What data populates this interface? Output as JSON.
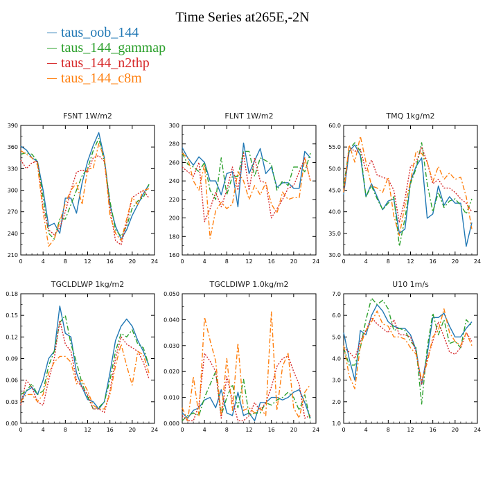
{
  "title": "Time Series at265E,-2N",
  "legend": [
    {
      "name": "taus_oob_144",
      "color": "#1f77b4",
      "dash": ""
    },
    {
      "name": "taus_144_gammap",
      "color": "#2ca02c",
      "dash": "7,3,2,3"
    },
    {
      "name": "taus_144_n2thp",
      "color": "#d62728",
      "dash": "2,2"
    },
    {
      "name": "taus_144_c8m",
      "color": "#ff7f0e",
      "dash": "7,3,2,3"
    }
  ],
  "chart_data": [
    {
      "type": "line",
      "title": "FSNT   1W/m2",
      "xlim": [
        0,
        24
      ],
      "xticks": [
        0,
        4,
        8,
        12,
        16,
        20,
        24
      ],
      "ylim": [
        210,
        390
      ],
      "yticks": [
        "210",
        "240",
        "270",
        "300",
        "330",
        "360",
        "390"
      ],
      "x": [
        0,
        1,
        2,
        3,
        4,
        5,
        6,
        7,
        8,
        9,
        10,
        11,
        12,
        13,
        14,
        15,
        16,
        17,
        18,
        19,
        20,
        21,
        22,
        23
      ],
      "series": [
        {
          "name": "taus_oob_144",
          "values": [
            361,
            356,
            345,
            340,
            300,
            250,
            254,
            240,
            289,
            289,
            268,
            310,
            340,
            362,
            380,
            345,
            280,
            250,
            232,
            245,
            265,
            280,
            295,
            308
          ]
        },
        {
          "name": "taus_144_gammap",
          "values": [
            350,
            352,
            350,
            340,
            290,
            240,
            232,
            260,
            260,
            280,
            300,
            320,
            330,
            355,
            372,
            340,
            285,
            245,
            236,
            250,
            275,
            285,
            290,
            308
          ]
        },
        {
          "name": "taus_144_n2thp",
          "values": [
            342,
            330,
            338,
            340,
            275,
            245,
            238,
            248,
            270,
            300,
            325,
            328,
            325,
            345,
            348,
            340,
            275,
            230,
            224,
            255,
            290,
            295,
            300,
            289
          ]
        },
        {
          "name": "taus_144_c8m",
          "values": [
            355,
            350,
            345,
            335,
            270,
            222,
            232,
            256,
            282,
            300,
            310,
            280,
            330,
            330,
            365,
            345,
            265,
            240,
            230,
            260,
            290,
            280,
            300,
            302
          ]
        }
      ]
    },
    {
      "type": "line",
      "title": "FLNT   1W/m2",
      "xlim": [
        0,
        24
      ],
      "xticks": [
        0,
        4,
        8,
        12,
        16,
        20,
        24
      ],
      "ylim": [
        160,
        300
      ],
      "yticks": [
        "160",
        "180",
        "200",
        "220",
        "240",
        "260",
        "280",
        "300"
      ],
      "x": [
        0,
        1,
        2,
        3,
        4,
        5,
        6,
        7,
        8,
        9,
        10,
        11,
        12,
        13,
        14,
        15,
        16,
        17,
        18,
        19,
        20,
        21,
        22,
        23
      ],
      "series": [
        {
          "name": "taus_oob_144",
          "values": [
            276,
            265,
            257,
            266,
            260,
            240,
            240,
            225,
            248,
            250,
            212,
            281,
            248,
            262,
            275,
            248,
            255,
            233,
            238,
            238,
            232,
            232,
            272,
            265
          ]
        },
        {
          "name": "taus_144_gammap",
          "values": [
            270,
            258,
            255,
            250,
            260,
            230,
            220,
            265,
            225,
            245,
            245,
            272,
            272,
            245,
            265,
            262,
            258,
            230,
            240,
            235,
            255,
            255,
            250,
            270
          ]
        },
        {
          "name": "taus_144_n2thp",
          "values": [
            255,
            250,
            245,
            260,
            196,
            210,
            228,
            212,
            230,
            255,
            230,
            270,
            230,
            265,
            240,
            238,
            200,
            210,
            220,
            232,
            235,
            250,
            265,
            240
          ]
        },
        {
          "name": "taus_144_c8m",
          "values": [
            270,
            265,
            240,
            230,
            258,
            178,
            208,
            217,
            210,
            215,
            250,
            240,
            220,
            235,
            225,
            238,
            215,
            205,
            228,
            220,
            222,
            222,
            265,
            240
          ]
        }
      ]
    },
    {
      "type": "line",
      "title": "TMQ   1kg/m2",
      "xlim": [
        0,
        24
      ],
      "xticks": [
        0,
        4,
        8,
        12,
        16,
        20,
        24
      ],
      "ylim": [
        30,
        60
      ],
      "yticks": [
        "30.0",
        "35.0",
        "40.0",
        "45.0",
        "50.0",
        "55.0",
        "60.0"
      ],
      "x": [
        0,
        1,
        2,
        3,
        4,
        5,
        6,
        7,
        8,
        9,
        10,
        11,
        12,
        13,
        14,
        15,
        16,
        17,
        18,
        19,
        20,
        21,
        22,
        23
      ],
      "series": [
        {
          "name": "taus_oob_144",
          "values": [
            44.0,
            54.0,
            55.5,
            53.0,
            43.5,
            46.5,
            43.5,
            40.5,
            42.5,
            43.0,
            35.0,
            36.0,
            47.0,
            50.5,
            52.5,
            38.5,
            39.5,
            46.0,
            41.5,
            43.5,
            42.0,
            42.0,
            32.0,
            37.5
          ]
        },
        {
          "name": "taus_144_gammap",
          "values": [
            46.0,
            54.5,
            56.0,
            54.0,
            43.5,
            46.0,
            43.0,
            40.5,
            42.0,
            43.5,
            32.0,
            38.5,
            46.5,
            50.0,
            56.0,
            46.5,
            40.0,
            44.5,
            41.0,
            42.5,
            43.0,
            41.5,
            39.5,
            43.0
          ]
        },
        {
          "name": "taus_144_n2thp",
          "values": [
            44.5,
            55.0,
            54.0,
            54.5,
            49.5,
            52.0,
            48.5,
            48.0,
            47.5,
            45.0,
            37.5,
            43.0,
            50.5,
            51.5,
            55.0,
            51.5,
            46.5,
            47.5,
            45.5,
            45.5,
            44.5,
            43.0,
            42.0,
            40.0
          ]
        },
        {
          "name": "taus_144_c8m",
          "values": [
            44.5,
            55.5,
            51.5,
            57.5,
            51.5,
            46.0,
            45.5,
            44.5,
            48.0,
            39.0,
            34.5,
            41.5,
            47.0,
            54.0,
            53.5,
            51.5,
            47.0,
            50.5,
            47.5,
            49.0,
            47.5,
            48.0,
            43.5,
            36.0
          ]
        }
      ]
    },
    {
      "type": "line",
      "title": "TGCLDLWP   1kg/m2",
      "xlim": [
        0,
        24
      ],
      "xticks": [
        0,
        4,
        8,
        12,
        16,
        20,
        24
      ],
      "ylim": [
        0,
        0.18
      ],
      "yticks": [
        "0.00",
        "0.03",
        "0.06",
        "0.09",
        "0.12",
        "0.15",
        "0.18"
      ],
      "x": [
        0,
        1,
        2,
        3,
        4,
        5,
        6,
        7,
        8,
        9,
        10,
        11,
        12,
        13,
        14,
        15,
        16,
        17,
        18,
        19,
        20,
        21,
        22,
        23
      ],
      "series": [
        {
          "name": "taus_oob_144",
          "values": [
            0.03,
            0.045,
            0.05,
            0.04,
            0.06,
            0.09,
            0.1,
            0.163,
            0.125,
            0.12,
            0.07,
            0.05,
            0.033,
            0.03,
            0.02,
            0.03,
            0.07,
            0.115,
            0.135,
            0.145,
            0.135,
            0.115,
            0.1,
            0.08
          ]
        },
        {
          "name": "taus_144_gammap",
          "values": [
            0.04,
            0.045,
            0.055,
            0.04,
            0.045,
            0.08,
            0.1,
            0.14,
            0.15,
            0.11,
            0.085,
            0.055,
            0.037,
            0.02,
            0.022,
            0.03,
            0.06,
            0.1,
            0.125,
            0.12,
            0.13,
            0.11,
            0.105,
            0.08
          ]
        },
        {
          "name": "taus_144_n2thp",
          "values": [
            0.025,
            0.06,
            0.05,
            0.03,
            0.025,
            0.06,
            0.09,
            0.143,
            0.11,
            0.1,
            0.06,
            0.05,
            0.04,
            0.02,
            0.02,
            0.015,
            0.045,
            0.09,
            0.12,
            0.11,
            0.105,
            0.1,
            0.085,
            0.062
          ]
        },
        {
          "name": "taus_144_c8m",
          "values": [
            0.03,
            0.04,
            0.04,
            0.03,
            0.04,
            0.07,
            0.085,
            0.093,
            0.093,
            0.085,
            0.055,
            0.06,
            0.045,
            0.025,
            0.02,
            0.02,
            0.04,
            0.08,
            0.11,
            0.08,
            0.053,
            0.1,
            0.095,
            0.07
          ]
        }
      ]
    },
    {
      "type": "line",
      "title": "TGCLDIWP   1.0kg/m2",
      "xlim": [
        0,
        24
      ],
      "xticks": [
        0,
        4,
        8,
        12,
        16,
        20,
        24
      ],
      "ylim": [
        0,
        0.05
      ],
      "yticks": [
        "0.000",
        "0.010",
        "0.020",
        "0.030",
        "0.040",
        "0.050"
      ],
      "x": [
        0,
        1,
        2,
        3,
        4,
        5,
        6,
        7,
        8,
        9,
        10,
        11,
        12,
        13,
        14,
        15,
        16,
        17,
        18,
        19,
        20,
        21,
        22,
        23
      ],
      "series": [
        {
          "name": "taus_oob_144",
          "values": [
            0.004,
            0.002,
            0.005,
            0.006,
            0.009,
            0.01,
            0.006,
            0.013,
            0.004,
            0.003,
            0.012,
            0.003,
            0.004,
            0.001,
            0.008,
            0.008,
            0.01,
            0.01,
            0.009,
            0.01,
            0.012,
            0.013,
            0.008,
            0.002
          ]
        },
        {
          "name": "taus_144_gammap",
          "values": [
            0.001,
            0.003,
            0.004,
            0.003,
            0.01,
            0.015,
            0.02,
            0.003,
            0.01,
            0.015,
            0.006,
            0.017,
            0.003,
            0.004,
            0.004,
            0.008,
            0.007,
            0.009,
            0.01,
            0.012,
            0.01,
            0.005,
            0.011,
            0.001
          ]
        },
        {
          "name": "taus_144_n2thp",
          "values": [
            0.003,
            0.001,
            0.001,
            0.007,
            0.027,
            0.024,
            0.02,
            0.002,
            0.018,
            0.009,
            0.001,
            0.001,
            0.003,
            0.008,
            0.005,
            0.008,
            0.014,
            0.022,
            0.025,
            0.026,
            0.02,
            0.015,
            0.002,
            0.003
          ]
        },
        {
          "name": "taus_144_c8m",
          "values": [
            0.006,
            0.001,
            0.018,
            0.003,
            0.041,
            0.032,
            0.024,
            0.003,
            0.025,
            0.005,
            0.031,
            0.005,
            0.006,
            0.004,
            0.006,
            0.003,
            0.043,
            0.005,
            0.022,
            0.027,
            0.006,
            0.002,
            0.012,
            0.015
          ]
        }
      ]
    },
    {
      "type": "line",
      "title": "U10   1m/s",
      "xlim": [
        0,
        24
      ],
      "xticks": [
        0,
        4,
        8,
        12,
        16,
        20,
        24
      ],
      "ylim": [
        1,
        7
      ],
      "yticks": [
        "1.0",
        "2.0",
        "3.0",
        "4.0",
        "5.0",
        "6.0",
        "7.0"
      ],
      "x": [
        0,
        1,
        2,
        3,
        4,
        5,
        6,
        7,
        8,
        9,
        10,
        11,
        12,
        13,
        14,
        15,
        16,
        17,
        18,
        19,
        20,
        21,
        22,
        23
      ],
      "series": [
        {
          "name": "taus_oob_144",
          "values": [
            5.2,
            4.0,
            3.0,
            5.3,
            5.1,
            6.0,
            6.5,
            6.2,
            5.7,
            5.5,
            5.4,
            5.4,
            5.1,
            4.4,
            2.8,
            4.2,
            5.9,
            5.9,
            6.1,
            5.5,
            5.0,
            5.0,
            5.4,
            5.7
          ]
        },
        {
          "name": "taus_144_gammap",
          "values": [
            4.5,
            3.7,
            3.7,
            4.5,
            5.8,
            6.8,
            6.5,
            6.7,
            6.3,
            5.3,
            5.4,
            5.3,
            4.8,
            4.5,
            1.9,
            4.5,
            6.1,
            5.1,
            5.8,
            4.7,
            4.8,
            4.5,
            5.8,
            5.5
          ]
        },
        {
          "name": "taus_144_n2thp",
          "values": [
            4.5,
            4.3,
            4.0,
            4.8,
            5.3,
            5.9,
            5.6,
            5.4,
            5.2,
            5.8,
            5.1,
            5.1,
            5.0,
            4.3,
            2.8,
            4.0,
            4.8,
            5.7,
            5.0,
            4.3,
            4.2,
            4.5,
            5.2,
            4.8
          ]
        },
        {
          "name": "taus_144_c8m",
          "values": [
            4.6,
            3.2,
            2.6,
            4.6,
            5.3,
            5.7,
            6.2,
            5.6,
            5.5,
            5.0,
            5.0,
            4.9,
            4.5,
            4.2,
            3.0,
            3.8,
            5.0,
            5.3,
            6.3,
            5.2,
            4.8,
            4.6,
            5.2,
            4.6
          ]
        }
      ]
    }
  ]
}
